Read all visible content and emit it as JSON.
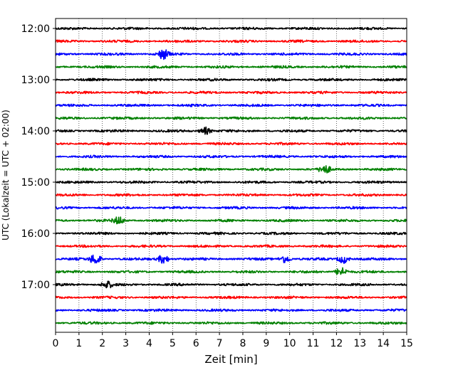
{
  "chart_data": {
    "type": "line",
    "title": "",
    "xlabel": "Zeit  [min]",
    "ylabel": "UTC (Lokalzeit = UTC + 02:00)",
    "xlim": [
      0,
      15
    ],
    "x_ticks": [
      "0",
      "1",
      "2",
      "3",
      "4",
      "5",
      "6",
      "7",
      "8",
      "9",
      "10",
      "11",
      "12",
      "13",
      "14",
      "15"
    ],
    "y_ticks": [
      "12:00",
      "13:00",
      "14:00",
      "15:00",
      "16:00",
      "17:00"
    ],
    "grid": "vertical-dotted",
    "trace_start": "12:00",
    "trace_interval_min": 15,
    "trace_count": 24,
    "trace_colors": [
      "#000000",
      "#ff0000",
      "#0000ff",
      "#008000"
    ],
    "events": [
      {
        "trace": 2,
        "t_min": 4.6,
        "amp": 1.8
      },
      {
        "trace": 8,
        "t_min": 6.4,
        "amp": 1.3
      },
      {
        "trace": 11,
        "t_min": 11.5,
        "amp": 1.4
      },
      {
        "trace": 15,
        "t_min": 2.7,
        "amp": 1.3
      },
      {
        "trace": 18,
        "t_min": 1.7,
        "amp": 2.0
      },
      {
        "trace": 18,
        "t_min": 4.6,
        "amp": 1.6
      },
      {
        "trace": 18,
        "t_min": 9.8,
        "amp": 1.4
      },
      {
        "trace": 18,
        "t_min": 12.3,
        "amp": 1.5
      },
      {
        "trace": 19,
        "t_min": 12.2,
        "amp": 1.6
      },
      {
        "trace": 20,
        "t_min": 2.2,
        "amp": 1.2
      }
    ]
  }
}
